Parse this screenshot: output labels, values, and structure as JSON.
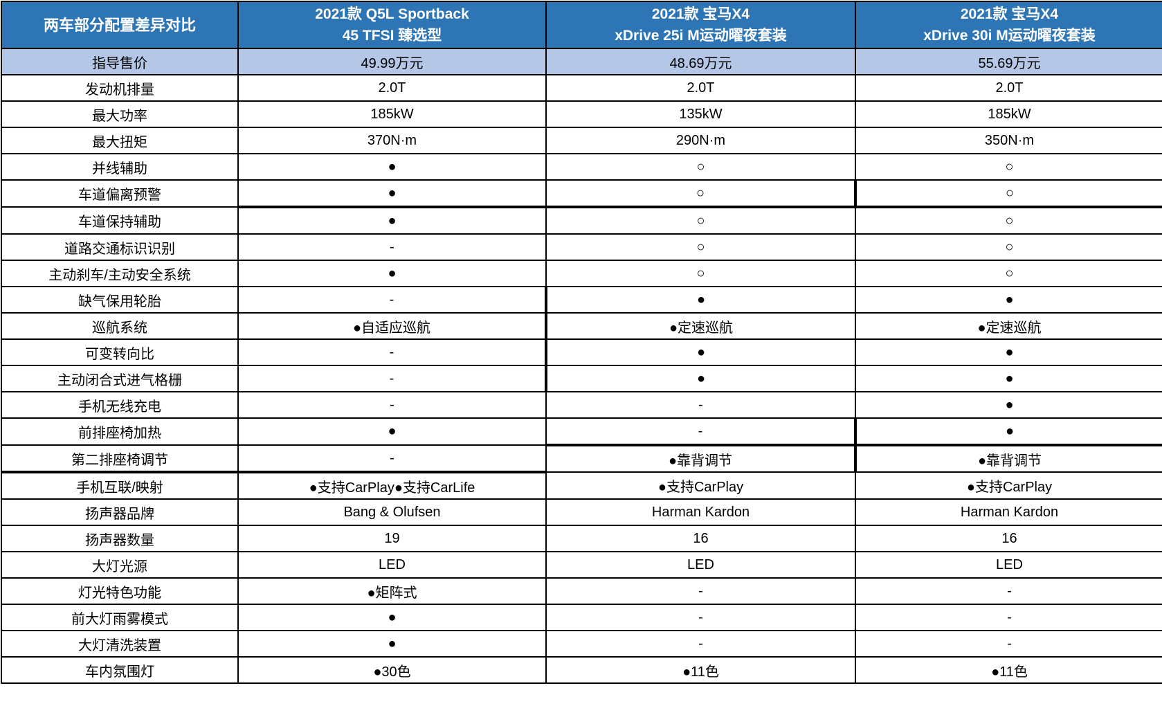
{
  "table": {
    "corner_label": "两车部分配置差异对比",
    "columns": [
      {
        "title_line1": "2021款 Q5L Sportback",
        "title_line2": "45 TFSI 臻选型"
      },
      {
        "title_line1": "2021款 宝马X4",
        "title_line2": "xDrive 25i M运动曜夜套装"
      },
      {
        "title_line1": "2021款 宝马X4",
        "title_line2": "xDrive 30i M运动曜夜套装"
      }
    ],
    "symbols": {
      "equipped": "●",
      "not_equipped": "○",
      "not_available": "-"
    },
    "rows": [
      {
        "label": "指导售价",
        "values": [
          "49.99万元",
          "48.69万元",
          "55.69万元"
        ],
        "highlight": true
      },
      {
        "label": "发动机排量",
        "values": [
          "2.0T",
          "2.0T",
          "2.0T"
        ]
      },
      {
        "label": "最大功率",
        "values": [
          "185kW",
          "135kW",
          "185kW"
        ]
      },
      {
        "label": "最大扭矩",
        "values": [
          "370N·m",
          "290N·m",
          "350N·m"
        ]
      },
      {
        "label": "并线辅助",
        "values": [
          "●",
          "○",
          "○"
        ]
      },
      {
        "label": "车道偏离预警",
        "values": [
          "●",
          "○",
          "○"
        ]
      },
      {
        "label": "车道保持辅助",
        "values": [
          "●",
          "○",
          "○"
        ]
      },
      {
        "label": "道路交通标识识别",
        "values": [
          "-",
          "○",
          "○"
        ]
      },
      {
        "label": "主动刹车/主动安全系统",
        "values": [
          "●",
          "○",
          "○"
        ]
      },
      {
        "label": "缺气保用轮胎",
        "values": [
          "-",
          "●",
          "●"
        ]
      },
      {
        "label": "巡航系统",
        "values": [
          "●自适应巡航",
          "●定速巡航",
          "●定速巡航"
        ]
      },
      {
        "label": "可变转向比",
        "values": [
          "-",
          "●",
          "●"
        ]
      },
      {
        "label": "主动闭合式进气格栅",
        "values": [
          "-",
          "●",
          "●"
        ]
      },
      {
        "label": "手机无线充电",
        "values": [
          "-",
          "-",
          "●"
        ]
      },
      {
        "label": "前排座椅加热",
        "values": [
          "●",
          "-",
          "●"
        ]
      },
      {
        "label": "第二排座椅调节",
        "values": [
          "-",
          "●靠背调节",
          "●靠背调节"
        ]
      },
      {
        "label": "手机互联/映射",
        "values": [
          "●支持CarPlay●支持CarLife",
          "●支持CarPlay",
          "●支持CarPlay"
        ]
      },
      {
        "label": "扬声器品牌",
        "values": [
          "Bang & Olufsen",
          "Harman Kardon",
          "Harman Kardon"
        ]
      },
      {
        "label": "扬声器数量",
        "values": [
          "19",
          "16",
          "16"
        ]
      },
      {
        "label": "大灯光源",
        "values": [
          "LED",
          "LED",
          "LED"
        ]
      },
      {
        "label": "灯光特色功能",
        "values": [
          "●矩阵式",
          "-",
          "-"
        ]
      },
      {
        "label": "前大灯雨雾模式",
        "values": [
          "●",
          "-",
          "-"
        ]
      },
      {
        "label": "大灯清洗装置",
        "values": [
          "●",
          "-",
          "-"
        ]
      },
      {
        "label": "车内氛围灯",
        "values": [
          "●30色",
          "●11色",
          "●11色"
        ]
      }
    ],
    "colors": {
      "header_bg": "#2E75B6",
      "header_text": "#FFFFFF",
      "price_row_bg": "#B4C7E7",
      "cell_bg": "#FFFFFF",
      "text": "#000000",
      "border": "#000000"
    }
  }
}
